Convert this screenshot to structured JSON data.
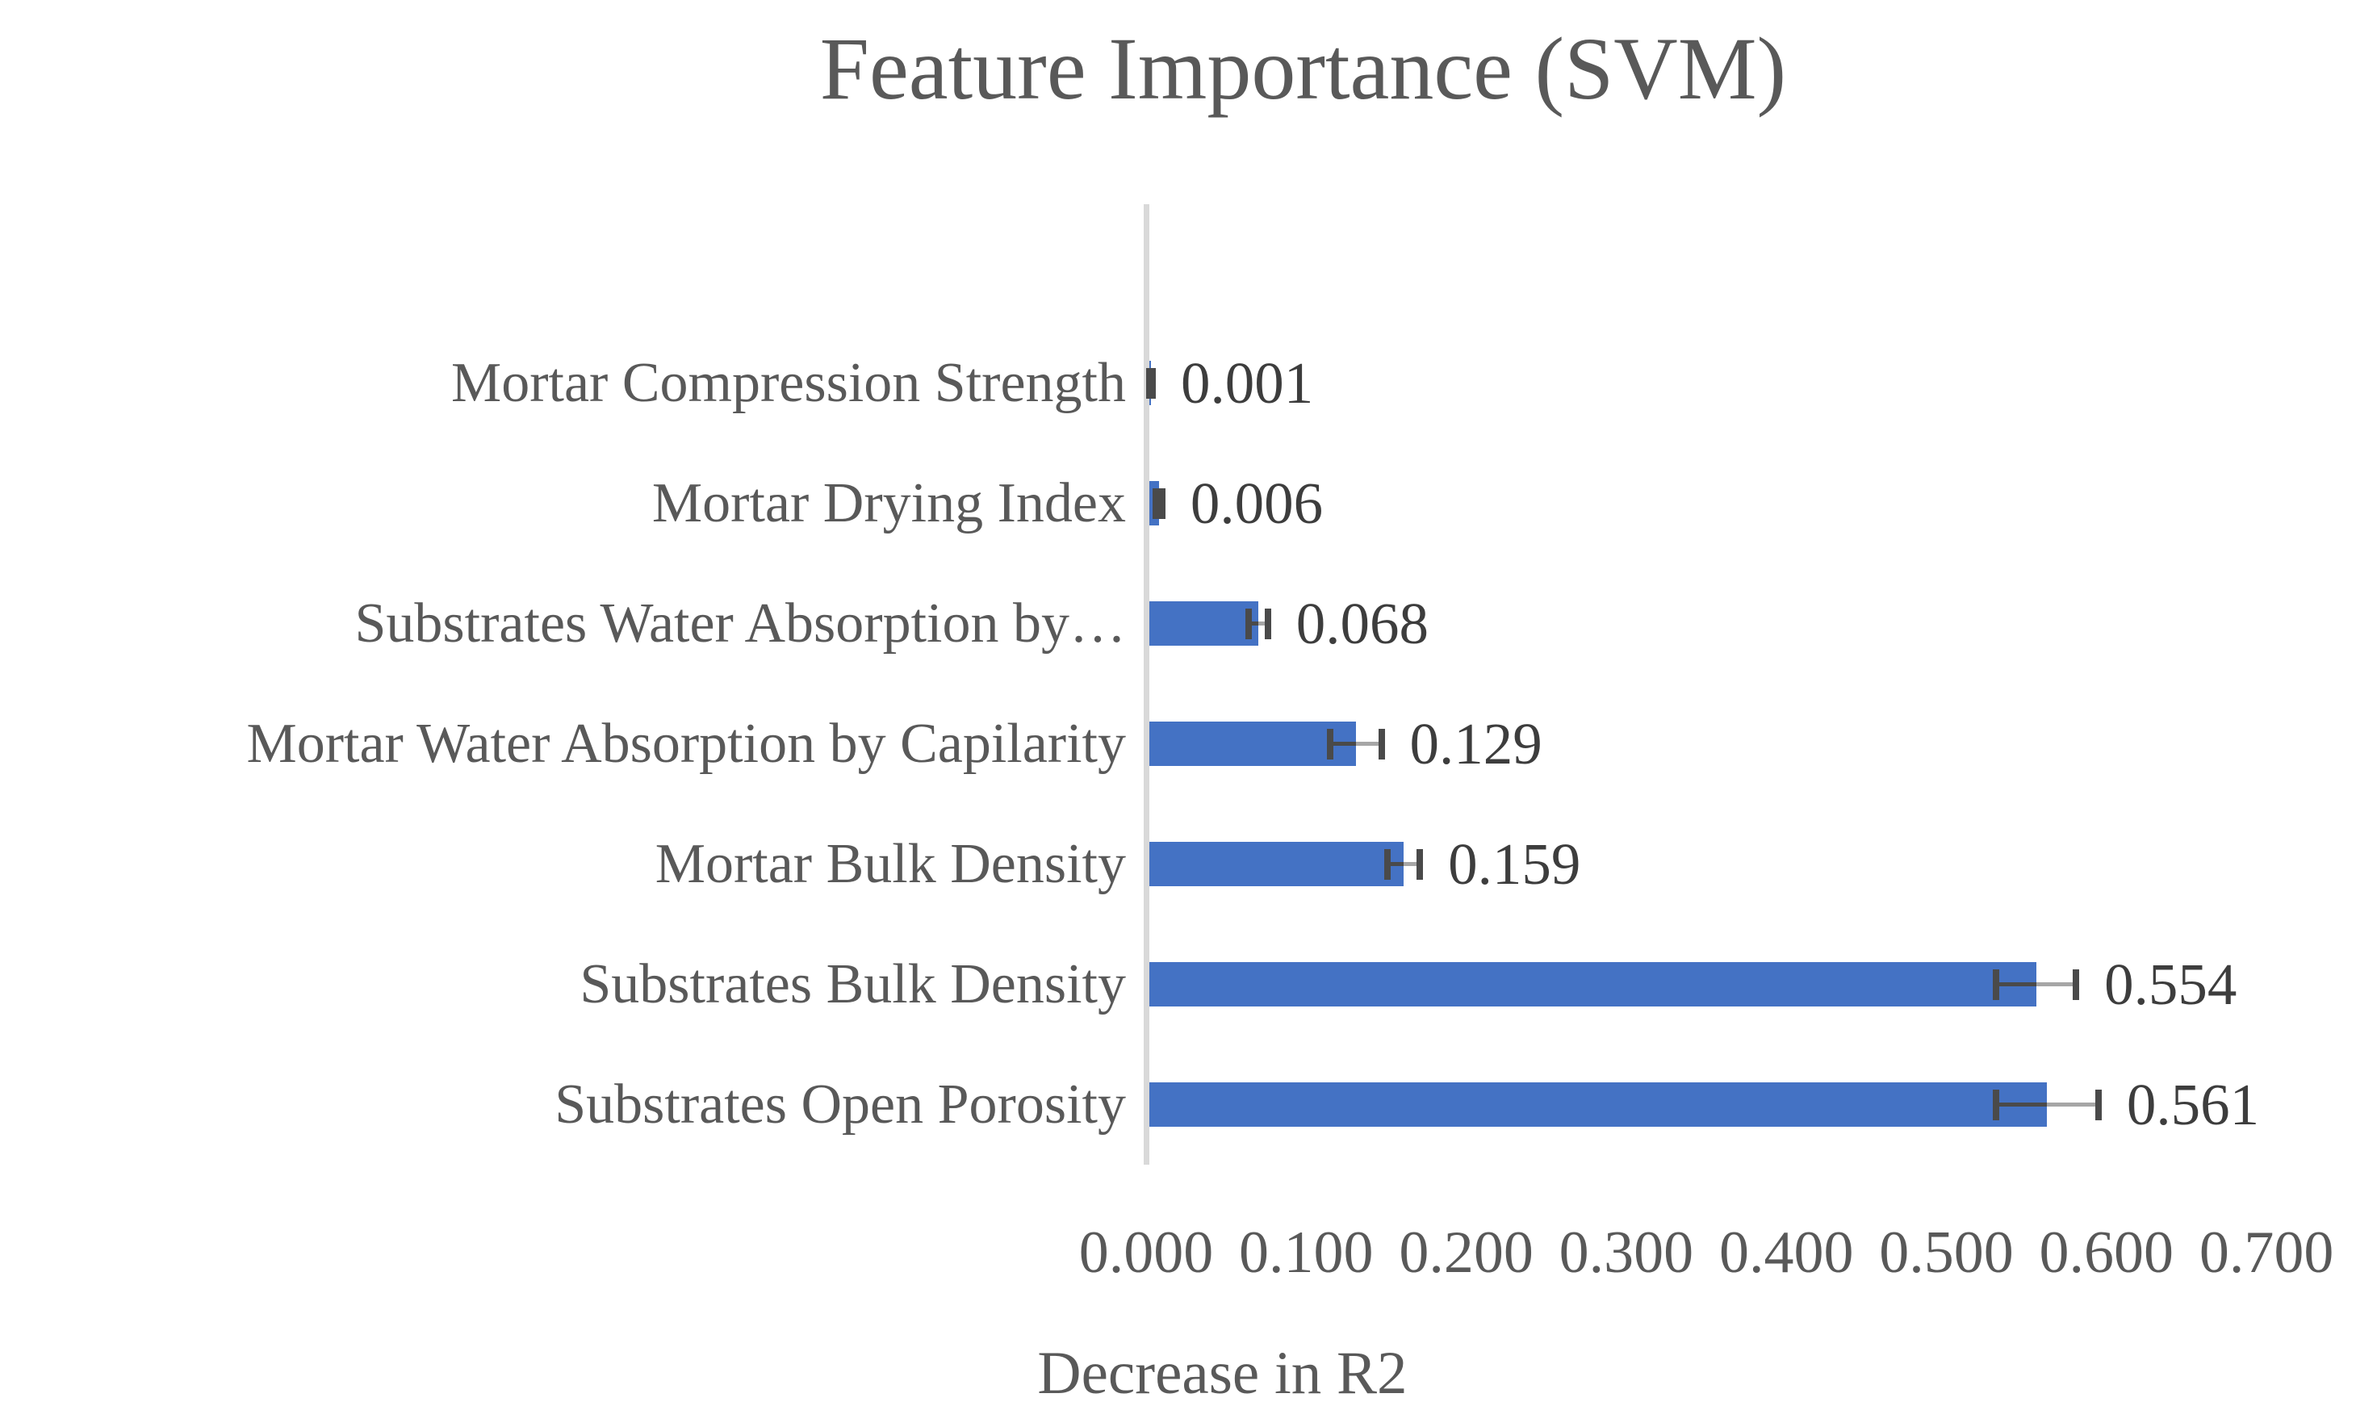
{
  "chart_data": {
    "type": "bar",
    "orientation": "horizontal",
    "title": "Feature Importance (SVM)",
    "xlabel": "Decrease in R2",
    "xlim": [
      0.0,
      0.7
    ],
    "grid": false,
    "legend": "none",
    "x_tick_labels": [
      "0.000",
      "0.100",
      "0.200",
      "0.300",
      "0.400",
      "0.500",
      "0.600",
      "0.700"
    ],
    "categories_top_to_bottom": [
      "Mortar Compression Strength",
      "Mortar Drying Index",
      "Substrates Water Absorption by…",
      "Mortar Water Absorption by Capilarity",
      "Mortar Bulk Density",
      "Substrates Bulk Density",
      "Substrates Open Porosity"
    ],
    "values": [
      0.001,
      0.006,
      0.068,
      0.129,
      0.159,
      0.554,
      0.561
    ],
    "error_bars_plus_minus": [
      0.001,
      0.002,
      0.006,
      0.016,
      0.01,
      0.025,
      0.032
    ],
    "data_labels": [
      "0.001",
      "0.006",
      "0.068",
      "0.129",
      "0.159",
      "0.554",
      "0.561"
    ],
    "colors": {
      "bar": "#4472C4",
      "axis_line": "#D9D9D9",
      "error_cap_dark": "#4a4a4a",
      "error_whisker_light": "#A6A6A6",
      "axis_text": "#595959",
      "title_text": "#595959",
      "data_label_text": "#3d3d3d"
    }
  }
}
